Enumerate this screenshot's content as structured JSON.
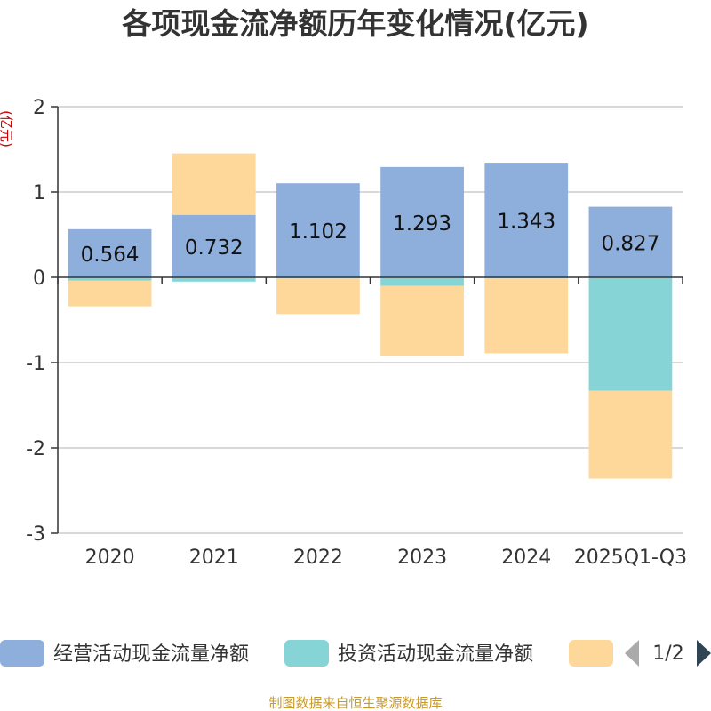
{
  "chart_data": {
    "type": "bar",
    "stacked": true,
    "title": "各项现金流净额历年变化情况(亿元)",
    "ylabel": "(亿元)",
    "xlabel": "",
    "ylim": [
      -3,
      2
    ],
    "yticks": [
      2,
      1,
      0,
      -1,
      -2,
      -3
    ],
    "grid": true,
    "categories": [
      "2020",
      "2021",
      "2022",
      "2023",
      "2024",
      "2025Q1-Q3"
    ],
    "series": [
      {
        "name": "经营活动现金流量净额",
        "color": "#8eaedb",
        "values": [
          0.564,
          0.732,
          1.102,
          1.293,
          1.343,
          0.827
        ],
        "labels": [
          "0.564",
          "0.732",
          "1.102",
          "1.293",
          "1.343",
          "0.827"
        ]
      },
      {
        "name": "投资活动现金流量净额",
        "color": "#86d4d6",
        "values": [
          -0.04,
          -0.05,
          -0.01,
          -0.1,
          -0.01,
          -1.33
        ]
      },
      {
        "name": "",
        "color": "#fdd89a",
        "values": [
          -0.3,
          0.72,
          -0.42,
          -0.82,
          -0.88,
          -1.03
        ]
      }
    ],
    "legend": {
      "position": "bottom",
      "page": "1/2"
    }
  },
  "source": "制图数据来自恒生聚源数据库"
}
